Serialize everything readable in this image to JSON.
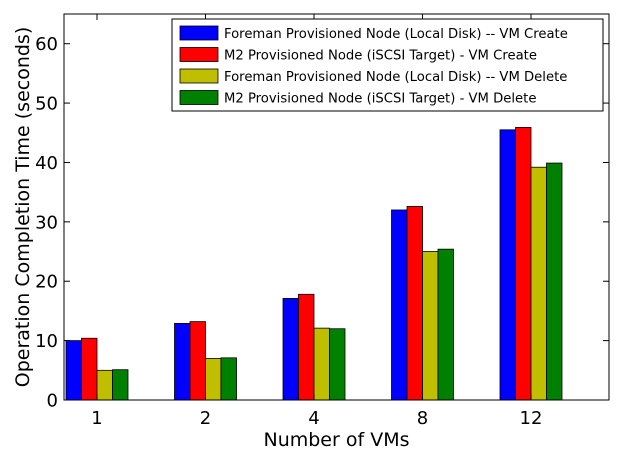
{
  "chart_data": {
    "type": "bar",
    "title": "",
    "xlabel": "Number of VMs",
    "ylabel": "Operation Completion Time (seconds)",
    "categories": [
      "1",
      "2",
      "4",
      "8",
      "12"
    ],
    "ylim": [
      0,
      65
    ],
    "yticks": [
      0,
      10,
      20,
      30,
      40,
      50,
      60
    ],
    "grid": false,
    "legend_position": "top-right",
    "series": [
      {
        "name": "Foreman Provisioned Node (Local Disk) -- VM Create",
        "color": "#0000ff",
        "values": [
          10,
          12.9,
          17.1,
          32,
          45.5
        ]
      },
      {
        "name": "M2 Provisioned Node (iSCSI Target) - VM Create",
        "color": "#ff0000",
        "values": [
          10.4,
          13.2,
          17.8,
          32.6,
          45.9
        ]
      },
      {
        "name": "Foreman Provisioned Node (Local Disk) -- VM Delete",
        "color": "#bfbf00",
        "values": [
          5,
          7,
          12.1,
          25,
          39.2
        ]
      },
      {
        "name": "M2 Provisioned Node (iSCSI Target) - VM Delete",
        "color": "#008000",
        "values": [
          5.1,
          7.1,
          12,
          25.4,
          39.9
        ]
      }
    ]
  }
}
